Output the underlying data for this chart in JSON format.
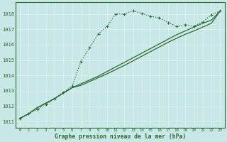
{
  "x": [
    0,
    1,
    2,
    3,
    4,
    5,
    6,
    7,
    8,
    9,
    10,
    11,
    12,
    13,
    14,
    15,
    16,
    17,
    18,
    19,
    20,
    21,
    22,
    23
  ],
  "line_dotted": [
    1011.2,
    1011.5,
    1011.8,
    1012.1,
    1012.5,
    1012.9,
    1013.3,
    1014.9,
    1015.8,
    1016.7,
    1017.2,
    1018.0,
    1018.0,
    1018.2,
    1018.05,
    1017.85,
    1017.75,
    1017.45,
    1017.2,
    1017.3,
    1017.2,
    1017.5,
    1017.95,
    1018.2
  ],
  "line_solid1": [
    1011.2,
    1011.5,
    1011.9,
    1012.2,
    1012.5,
    1012.85,
    1013.2,
    1013.45,
    1013.7,
    1013.95,
    1014.25,
    1014.55,
    1014.85,
    1015.15,
    1015.45,
    1015.75,
    1016.05,
    1016.35,
    1016.65,
    1016.9,
    1017.15,
    1017.4,
    1017.6,
    1018.2
  ],
  "line_solid2": [
    1011.2,
    1011.5,
    1011.9,
    1012.2,
    1012.5,
    1012.85,
    1013.2,
    1013.35,
    1013.6,
    1013.85,
    1014.1,
    1014.38,
    1014.65,
    1014.95,
    1015.25,
    1015.55,
    1015.85,
    1016.15,
    1016.42,
    1016.68,
    1016.9,
    1017.15,
    1017.4,
    1018.2
  ],
  "bg_color": "#c8e8e8",
  "grid_color": "#dff0f0",
  "line_color": "#2d6a2d",
  "border_color": "#2d6a2d",
  "xlabel": "Graphe pression niveau de la mer (hPa)",
  "ylim_min": 1010.6,
  "ylim_max": 1018.75,
  "xlim_min": -0.5,
  "xlim_max": 23.5,
  "yticks": [
    1011,
    1012,
    1013,
    1014,
    1015,
    1016,
    1017,
    1018
  ],
  "xticks": [
    0,
    1,
    2,
    3,
    4,
    5,
    6,
    7,
    8,
    9,
    10,
    11,
    12,
    13,
    14,
    15,
    16,
    17,
    18,
    19,
    20,
    21,
    22,
    23
  ],
  "ytick_fontsize": 5.0,
  "xtick_fontsize": 4.2,
  "xlabel_fontsize": 5.8,
  "linewidth_dotted": 0.9,
  "linewidth_solid": 0.9,
  "marker_size": 2.5,
  "figwidth": 3.2,
  "figheight": 2.0,
  "dpi": 100
}
